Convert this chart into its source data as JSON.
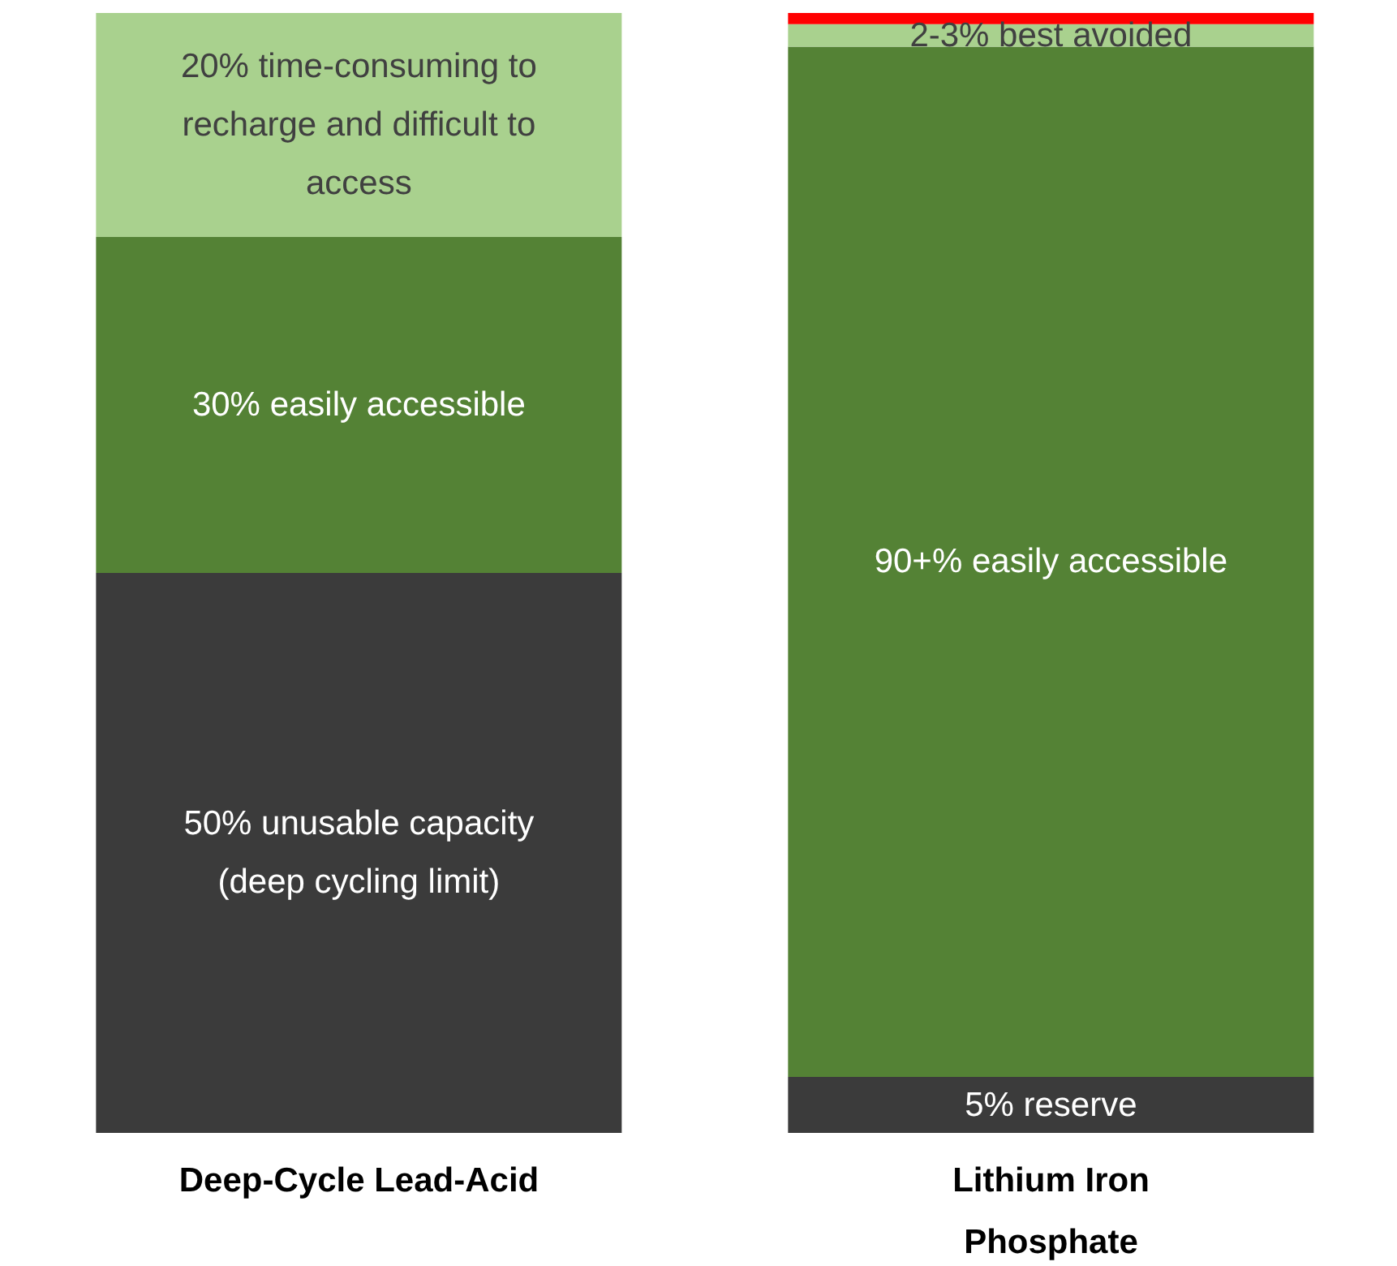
{
  "chart_data": {
    "type": "bar",
    "stacked": true,
    "tick_labels": "x",
    "categories": [
      "Deep-Cycle Lead-Acid",
      "Lithium Iron Phosphate"
    ],
    "series": [
      {
        "color": "#3b3b3b",
        "values": [
          50,
          5
        ],
        "value_labels": [
          "50% unusable capacity (deep cycling limit)",
          "5% reserve"
        ]
      },
      {
        "color": "#548235",
        "values": [
          30,
          92
        ],
        "value_labels": [
          "30% easily accessible",
          "90+% easily accessible"
        ]
      },
      {
        "color": "#a9d18e",
        "values": [
          20,
          2
        ],
        "value_labels": [
          "20% time-consuming to recharge and difficult to access",
          "2-3% best avoided"
        ]
      },
      {
        "color": "#ff0000",
        "values": [
          null,
          1
        ],
        "value_labels": [
          null,
          null
        ]
      }
    ]
  }
}
